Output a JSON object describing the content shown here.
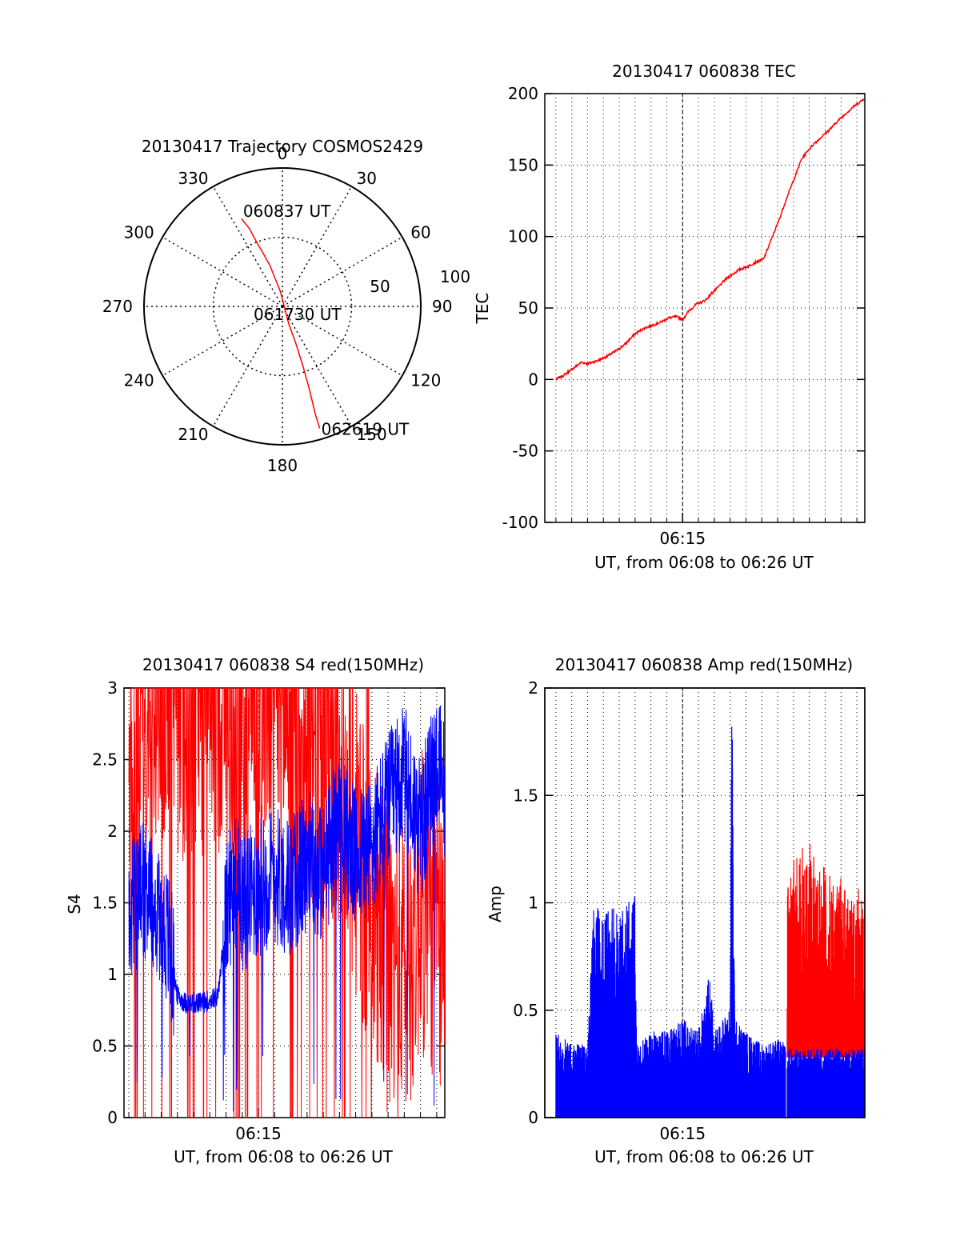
{
  "colors": {
    "red": "#ff0000",
    "blue": "#0000ff",
    "axis": "#000000",
    "grid": "#000000"
  },
  "chart_data": [
    {
      "type": "polar",
      "title": "20130417 Trajectory COSMOS2429",
      "angle_labels": [
        "0",
        "30",
        "60",
        "90",
        "120",
        "150",
        "180",
        "210",
        "240",
        "270",
        "300",
        "330"
      ],
      "angles": [
        0,
        30,
        60,
        90,
        120,
        150,
        180,
        210,
        240,
        270,
        300,
        330
      ],
      "radial_labels": [
        "50",
        "100"
      ],
      "radial_values": [
        50,
        100
      ],
      "rmax": 90,
      "grid": true,
      "trajectory": {
        "points": [
          [
            335,
            63
          ],
          [
            337,
            55
          ],
          [
            338,
            46
          ],
          [
            340,
            37
          ],
          [
            343,
            28
          ],
          [
            352,
            10
          ],
          [
            160,
            12
          ],
          [
            160,
            25
          ],
          [
            161,
            41
          ],
          [
            162,
            57
          ],
          [
            163,
            73
          ],
          [
            163,
            83
          ]
        ]
      },
      "annotations": [
        {
          "text": "060837 UT",
          "at": "start"
        },
        {
          "text": "061730 UT",
          "at": "center"
        },
        {
          "text": "062619 UT",
          "at": "end"
        }
      ]
    },
    {
      "type": "line",
      "title": "20130417 060838 TEC",
      "ylabel": "TEC",
      "xlabel": "UT, from 06:08 to 06:26 UT",
      "x_tick_labels": [
        "06:15"
      ],
      "x_range_minutes": [
        6.3,
        26.5
      ],
      "x_tick_major_minutes": [
        15
      ],
      "ylim": [
        -100,
        200
      ],
      "y_ticks": [
        -100,
        -50,
        0,
        50,
        100,
        150,
        200
      ],
      "grid": true,
      "series": [
        {
          "color": "red",
          "x": [
            7.0,
            7.5,
            8.0,
            8.6,
            9.0,
            9.6,
            10.2,
            10.8,
            11.4,
            12.0,
            12.6,
            13.1,
            13.6,
            14.1,
            14.6,
            15.0,
            15.4,
            15.9,
            16.2,
            16.5,
            16.8,
            17.2,
            17.7,
            18.2,
            18.6,
            19.1,
            19.6,
            20.1,
            20.6,
            21.1,
            21.6,
            22.1,
            22.5,
            22.9,
            23.3,
            23.8,
            24.3,
            24.8,
            25.3,
            25.8,
            26.3,
            26.5
          ],
          "values": [
            0,
            3,
            7,
            12,
            11,
            13,
            16,
            20,
            25,
            32,
            36,
            38,
            40,
            43,
            44,
            42,
            48,
            53,
            54,
            56,
            60,
            64,
            70,
            74,
            77,
            79,
            82,
            84,
            98,
            112,
            128,
            142,
            154,
            160,
            165,
            170,
            175,
            181,
            186,
            191,
            195,
            197
          ]
        }
      ]
    },
    {
      "type": "line",
      "title": "20130417 060838 S4 red(150MHz)",
      "ylabel": "S4",
      "xlabel": "UT, from 06:08 to 06:26 UT",
      "x_tick_labels": [
        "06:15"
      ],
      "x_range_minutes": [
        6.7,
        26.5
      ],
      "x_tick_major_minutes": [
        15
      ],
      "ylim": [
        0,
        3
      ],
      "y_ticks": [
        0,
        0.5,
        1,
        1.5,
        2,
        2.5,
        3
      ],
      "grid": true,
      "series": [
        {
          "color": "blue",
          "x": [
            7.0,
            8.0,
            9.0,
            9.5,
            10.0,
            10.5,
            11.0,
            11.5,
            12.0,
            12.5,
            13.0,
            13.5,
            14.0,
            15.0,
            16.0,
            17.0,
            18.0,
            19.0,
            20.0,
            21.0,
            22.0,
            23.0,
            24.0,
            25.0,
            26.0,
            26.5
          ],
          "values": [
            1.4,
            1.6,
            1.4,
            1.2,
            0.85,
            0.8,
            0.8,
            0.8,
            0.82,
            0.85,
            1.4,
            1.7,
            1.5,
            1.6,
            1.7,
            1.6,
            1.8,
            1.7,
            2.1,
            1.8,
            1.9,
            2.2,
            2.4,
            2.0,
            2.5,
            2.3
          ]
        },
        {
          "color": "red",
          "x": [
            7.0,
            8.0,
            9.0,
            10.0,
            11.0,
            12.0,
            13.0,
            14.0,
            15.0,
            16.0,
            17.0,
            18.0,
            19.0,
            20.0,
            21.0,
            22.0,
            23.0,
            24.0,
            25.0,
            26.0,
            26.5
          ],
          "values": [
            2.0,
            2.8,
            3.0,
            2.9,
            2.8,
            3.0,
            2.9,
            2.8,
            2.9,
            3.0,
            2.7,
            2.5,
            2.4,
            2.3,
            1.9,
            1.4,
            1.1,
            1.0,
            1.5,
            1.3,
            1.1
          ]
        }
      ]
    },
    {
      "type": "line",
      "title": "20130417 060838 Amp red(150MHz)",
      "ylabel": "Amp",
      "xlabel": "UT, from 06:08 to 06:26 UT",
      "x_tick_labels": [
        "06:15"
      ],
      "x_range_minutes": [
        6.3,
        26.5
      ],
      "x_tick_major_minutes": [
        15
      ],
      "ylim": [
        0,
        2
      ],
      "y_ticks": [
        0,
        0.5,
        1,
        1.5,
        2
      ],
      "grid": true,
      "series": [
        {
          "color": "blue",
          "x": [
            7.0,
            8.0,
            9.0,
            9.4,
            10.0,
            11.0,
            12.0,
            12.1,
            13.0,
            14.0,
            15.0,
            16.0,
            16.7,
            17.0,
            18.0,
            18.1,
            18.3,
            19.0,
            20.0,
            21.0,
            21.5
          ],
          "values": [
            0.35,
            0.3,
            0.3,
            0.9,
            0.85,
            0.85,
            0.9,
            0.3,
            0.35,
            0.35,
            0.4,
            0.35,
            0.6,
            0.35,
            0.45,
            1.82,
            0.4,
            0.35,
            0.3,
            0.32,
            0.3
          ]
        },
        {
          "color": "red",
          "x": [
            21.6,
            22.0,
            22.5,
            23.0,
            23.5,
            24.0,
            24.5,
            25.0,
            25.5,
            26.0,
            26.5
          ],
          "values": [
            0.9,
            1.0,
            1.05,
            1.1,
            0.95,
            1.0,
            0.9,
            0.95,
            0.85,
            0.9,
            0.85
          ]
        }
      ]
    }
  ]
}
